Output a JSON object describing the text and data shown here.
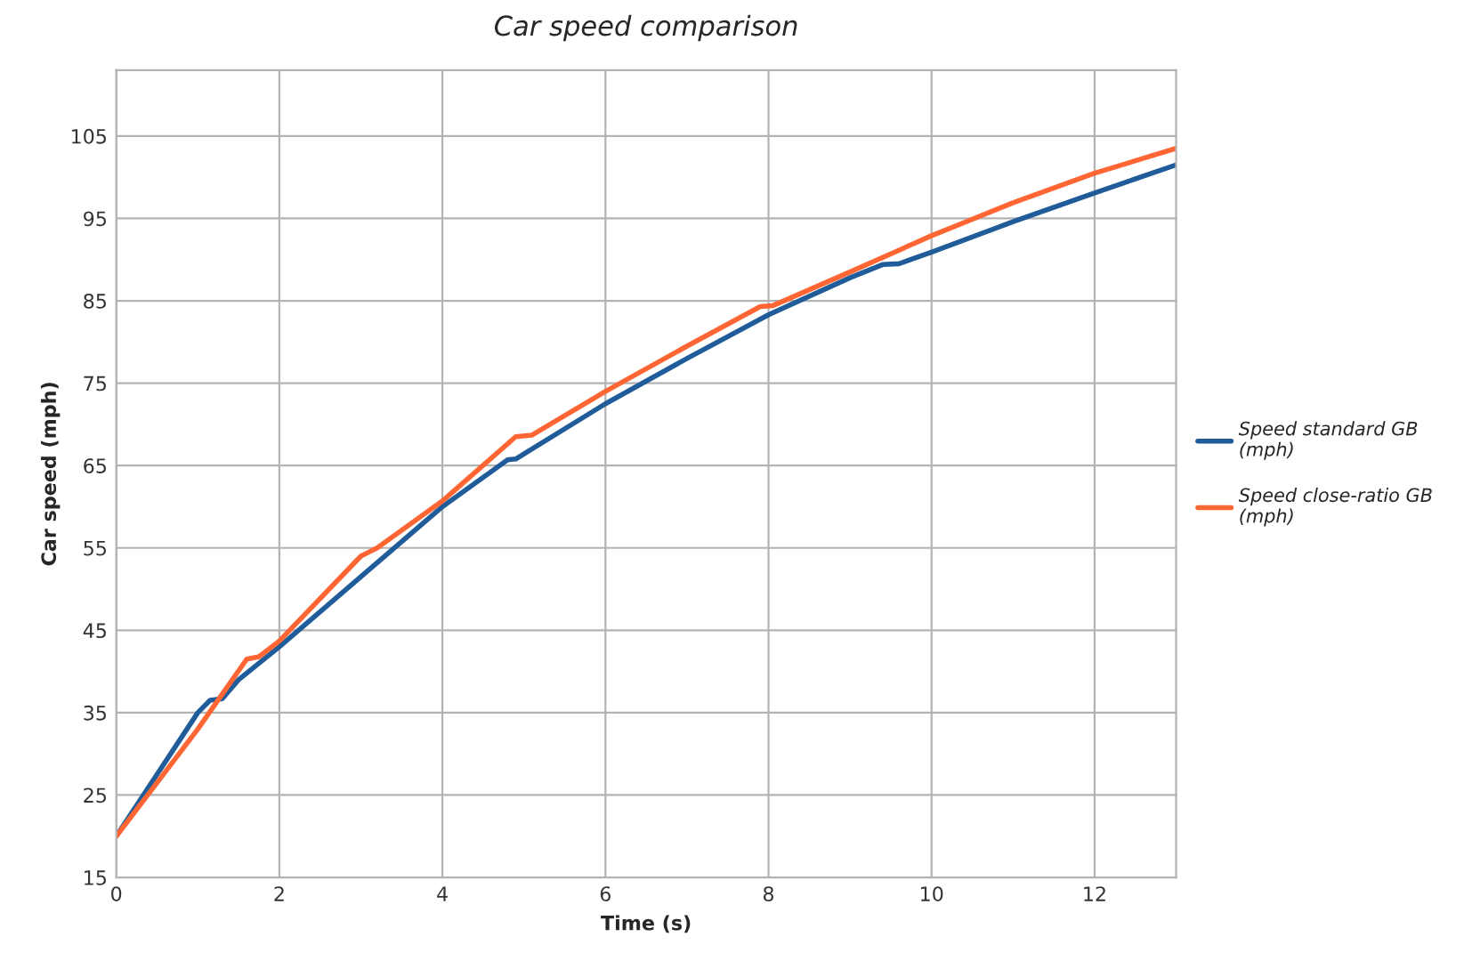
{
  "chart_data": {
    "type": "line",
    "title": "Car speed comparison",
    "xlabel": "Time (s)",
    "ylabel": "Car speed (mph)",
    "xlim": [
      0,
      13
    ],
    "xticks": [
      0,
      2,
      4,
      6,
      8,
      10,
      12
    ],
    "ylim": [
      15,
      113
    ],
    "yticks": [
      15,
      25,
      35,
      45,
      55,
      65,
      75,
      85,
      95,
      105
    ],
    "grid": true,
    "legend": "right",
    "marker": "none",
    "line_style": "solid",
    "series": [
      {
        "name": "Speed standard GB (mph)",
        "color": "#1f5c99",
        "x": [
          0,
          0.5,
          1.0,
          1.15,
          1.3,
          1.5,
          2,
          3,
          4,
          4.8,
          4.9,
          6,
          7,
          8,
          9,
          9.4,
          9.6,
          10,
          11,
          12,
          13
        ],
        "values": [
          20,
          27.5,
          35,
          36.5,
          36.7,
          39,
          43,
          51.5,
          60,
          65.7,
          65.8,
          72.5,
          78,
          83.3,
          87.8,
          89.4,
          89.5,
          90.9,
          94.6,
          98.1,
          101.5
        ]
      },
      {
        "name": "Speed close-ratio GB (mph)",
        "color": "#ff6633",
        "x": [
          0,
          0.5,
          1,
          1.6,
          1.75,
          2,
          3,
          3.1,
          3.2,
          4,
          4.9,
          5.1,
          6,
          7,
          7.9,
          8.05,
          9,
          10,
          11,
          12,
          13
        ],
        "values": [
          20,
          26.5,
          33,
          41.5,
          41.8,
          43.7,
          54,
          54.5,
          55,
          60.7,
          68.5,
          68.7,
          74,
          79.5,
          84.3,
          84.4,
          88.5,
          92.9,
          96.9,
          100.5,
          103.5
        ]
      }
    ]
  }
}
